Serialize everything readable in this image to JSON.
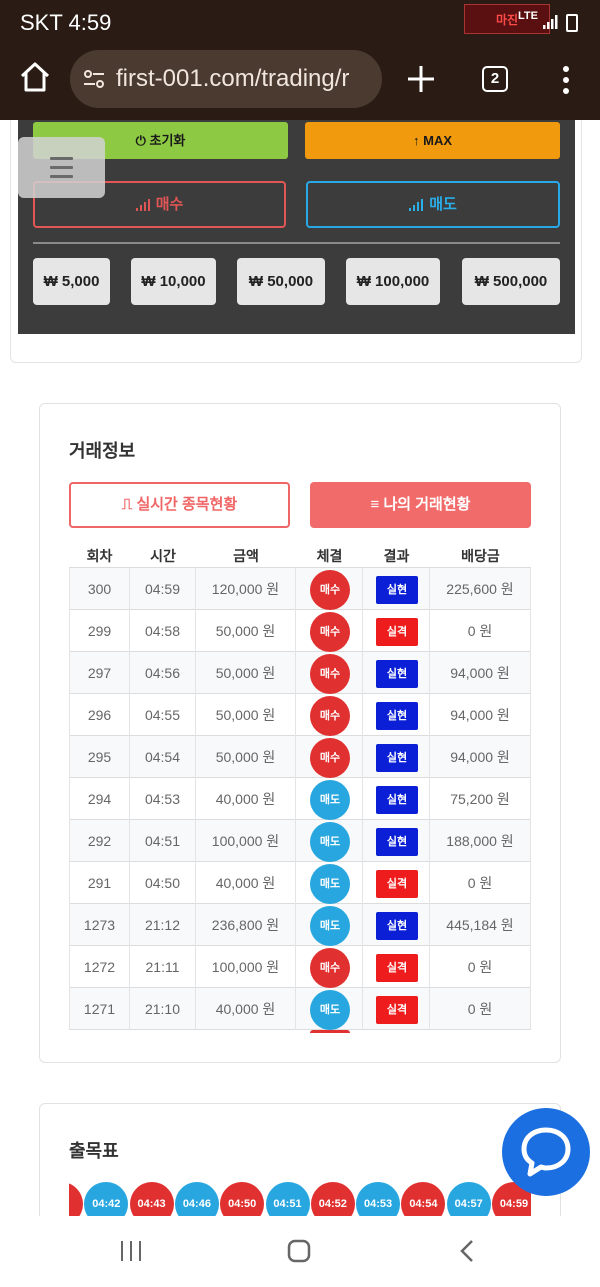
{
  "status_bar": {
    "time": "SKT 4:59",
    "network": "LTE",
    "logo_text": "마진"
  },
  "browser": {
    "url": "first-001.com/trading/r",
    "tab_count": "2"
  },
  "trade_panel": {
    "reset_label": "초기화",
    "max_label": "MAX",
    "buy_label": "매수",
    "sell_label": "매도",
    "amounts": [
      "₩ 5,000",
      "₩ 10,000",
      "₩ 50,000",
      "₩ 100,000",
      "₩ 500,000"
    ]
  },
  "trade_info": {
    "title": "거래정보",
    "realtime_button": "실시간 종목현황",
    "my_trades_button": "나의 거래현황",
    "headers": [
      "회차",
      "시간",
      "금액",
      "체결",
      "결과",
      "배당금"
    ],
    "rows": [
      {
        "round": "300",
        "time": "04:59",
        "amount": "120,000 원",
        "side": "매수",
        "result": "실현",
        "payout": "225,600 원"
      },
      {
        "round": "299",
        "time": "04:58",
        "amount": "50,000 원",
        "side": "매수",
        "result": "실격",
        "payout": "0 원"
      },
      {
        "round": "297",
        "time": "04:56",
        "amount": "50,000 원",
        "side": "매수",
        "result": "실현",
        "payout": "94,000 원"
      },
      {
        "round": "296",
        "time": "04:55",
        "amount": "50,000 원",
        "side": "매수",
        "result": "실현",
        "payout": "94,000 원"
      },
      {
        "round": "295",
        "time": "04:54",
        "amount": "50,000 원",
        "side": "매수",
        "result": "실현",
        "payout": "94,000 원"
      },
      {
        "round": "294",
        "time": "04:53",
        "amount": "40,000 원",
        "side": "매도",
        "result": "실현",
        "payout": "75,200 원"
      },
      {
        "round": "292",
        "time": "04:51",
        "amount": "100,000 원",
        "side": "매도",
        "result": "실현",
        "payout": "188,000 원"
      },
      {
        "round": "291",
        "time": "04:50",
        "amount": "40,000 원",
        "side": "매도",
        "result": "실격",
        "payout": "0 원"
      },
      {
        "round": "1273",
        "time": "21:12",
        "amount": "236,800 원",
        "side": "매도",
        "result": "실현",
        "payout": "445,184 원"
      },
      {
        "round": "1272",
        "time": "21:11",
        "amount": "100,000 원",
        "side": "매수",
        "result": "실격",
        "payout": "0 원"
      },
      {
        "round": "1271",
        "time": "21:10",
        "amount": "40,000 원",
        "side": "매도",
        "result": "실격",
        "payout": "0 원"
      }
    ]
  },
  "chart_table": {
    "title": "출목표",
    "chips": [
      {
        "label": "",
        "side": "buy"
      },
      {
        "label": "04:42",
        "side": "sell"
      },
      {
        "label": "04:43",
        "side": "buy"
      },
      {
        "label": "04:46",
        "side": "sell"
      },
      {
        "label": "04:50",
        "side": "buy"
      },
      {
        "label": "04:51",
        "side": "sell"
      },
      {
        "label": "04:52",
        "side": "buy"
      },
      {
        "label": "04:53",
        "side": "sell"
      },
      {
        "label": "04:54",
        "side": "buy"
      },
      {
        "label": "04:57",
        "side": "sell"
      },
      {
        "label": "04:59",
        "side": "buy"
      }
    ]
  },
  "colors": {
    "buy": "#e03030",
    "sell": "#27a6df",
    "realized": "#0a1fd6",
    "lost": "#ee1c1c",
    "accent": "#f26b6b"
  }
}
